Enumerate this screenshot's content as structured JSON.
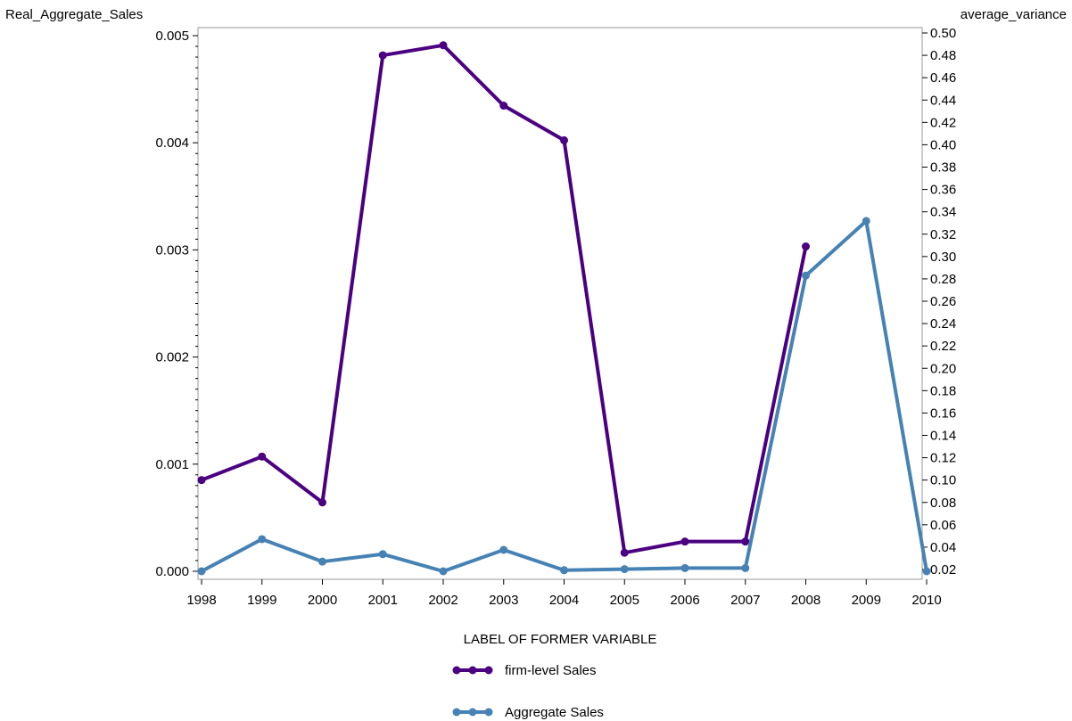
{
  "chart_data": {
    "type": "line",
    "xlabel": "LABEL OF FORMER VARIABLE",
    "ylabel_left": "Real_Aggregate_Sales",
    "ylabel_right": "average_variance",
    "x": [
      "1998",
      "1999",
      "2000",
      "2001",
      "2002",
      "2003",
      "2004",
      "2005",
      "2006",
      "2007",
      "2008",
      "2009",
      "2010"
    ],
    "ylim_left": [
      0,
      0.005
    ],
    "ylim_right": [
      0.02,
      0.5
    ],
    "yticks_left": [
      "0.000",
      "0.001",
      "0.002",
      "0.003",
      "0.004",
      "0.005"
    ],
    "yticks_right": [
      "0.02",
      "0.04",
      "0.06",
      "0.08",
      "0.10",
      "0.12",
      "0.14",
      "0.16",
      "0.18",
      "0.20",
      "0.22",
      "0.24",
      "0.26",
      "0.28",
      "0.30",
      "0.32",
      "0.34",
      "0.36",
      "0.38",
      "0.40",
      "0.42",
      "0.44",
      "0.46",
      "0.48",
      "0.50"
    ],
    "grid": false,
    "legend_position": "bottom",
    "series": [
      {
        "name": "firm-level Sales",
        "axis": "right",
        "color": "#4b0082",
        "values": [
          0.1,
          0.121,
          0.08,
          0.48,
          0.489,
          0.435,
          0.404,
          0.035,
          0.045,
          0.045,
          0.309,
          null,
          null
        ]
      },
      {
        "name": "Aggregate Sales",
        "axis": "left",
        "color": "#4682b4",
        "values": [
          0.0,
          0.0003,
          9e-05,
          0.00016,
          0.0,
          0.0002,
          1e-05,
          2e-05,
          3e-05,
          3e-05,
          0.00276,
          0.00327,
          0.0
        ]
      }
    ]
  }
}
